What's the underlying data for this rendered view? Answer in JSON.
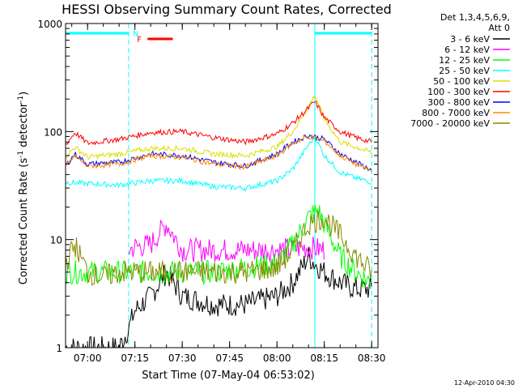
{
  "chart_data": {
    "type": "line",
    "title": "HESSI Observing Summary Count Rates, Corrected",
    "xlabel": "Start Time (07-May-04 06:53:02)",
    "ylabel": "Corrected Count Rate (s^-1 detector^-1)",
    "ylabel_parts": {
      "a": "Corrected Count Rate (s",
      "b": "-1",
      "c": " detector",
      "d": "-1",
      "e": ")"
    },
    "yscale": "log",
    "ylim": [
      1,
      1000
    ],
    "xlim": [
      "06:53:02",
      "08:32:00"
    ],
    "x_ticks": [
      "07:00",
      "07:15",
      "07:30",
      "07:45",
      "08:00",
      "08:15",
      "08:30"
    ],
    "y_ticks": [
      "1",
      "10",
      "100",
      "1000"
    ],
    "legend_header": [
      "Det 1,3,4,5,6,9,",
      "Att 0"
    ],
    "footer_date": "12-Apr-2010 04:30",
    "flags": [
      {
        "label": "N",
        "color": "#00ffff",
        "spans": [
          [
            "06:53:02",
            "07:13:00"
          ],
          [
            "08:12:00",
            "08:30:00"
          ]
        ]
      },
      {
        "label": "F",
        "color": "#ff0000",
        "spans": [
          [
            "07:19:00",
            "07:27:00"
          ]
        ]
      }
    ],
    "vertical_markers": [
      {
        "time": "07:13:00",
        "style": "dashed",
        "color": "#00ffff"
      },
      {
        "time": "08:12:00",
        "style": "solid",
        "color": "#00ffff"
      },
      {
        "time": "08:30:00",
        "style": "dashed",
        "color": "#00ffff"
      }
    ],
    "series": [
      {
        "name": "3 - 6 keV",
        "color": "#000000",
        "x": [
          "06:53",
          "07:00",
          "07:10",
          "07:13",
          "07:15",
          "07:20",
          "07:25",
          "07:30",
          "07:40",
          "07:50",
          "08:00",
          "08:05",
          "08:10",
          "08:12",
          "08:15",
          "08:20",
          "08:25",
          "08:30"
        ],
        "y": [
          1,
          1,
          1,
          1.5,
          2.2,
          3,
          5,
          3,
          2.5,
          2.5,
          3,
          4,
          7,
          6,
          5,
          4,
          3.5,
          3.5
        ]
      },
      {
        "name": "6 - 12 keV",
        "color": "#ff00ff",
        "x": [
          "07:13",
          "07:15",
          "07:20",
          "07:25",
          "07:30",
          "07:40",
          "07:50",
          "08:00",
          "08:10",
          "08:15"
        ],
        "y": [
          8,
          8.5,
          9,
          14,
          8,
          8,
          8,
          8,
          8.5,
          8
        ]
      },
      {
        "name": "12 - 25 keV",
        "color": "#00ff00",
        "x": [
          "06:53",
          "07:00",
          "07:10",
          "07:20",
          "07:30",
          "07:40",
          "07:50",
          "08:00",
          "08:05",
          "08:10",
          "08:13",
          "08:15",
          "08:20",
          "08:25",
          "08:30"
        ],
        "y": [
          5,
          5,
          5,
          5,
          5,
          5,
          5.5,
          6,
          9,
          16,
          19,
          14,
          7,
          5,
          4
        ]
      },
      {
        "name": "25 - 50 keV",
        "color": "#00ffff",
        "x": [
          "06:53",
          "07:00",
          "07:10",
          "07:20",
          "07:30",
          "07:40",
          "07:50",
          "08:00",
          "08:05",
          "08:10",
          "08:12",
          "08:15",
          "08:20",
          "08:25",
          "08:30"
        ],
        "y": [
          34,
          33,
          32,
          35,
          35,
          31,
          30,
          35,
          45,
          75,
          90,
          60,
          42,
          37,
          34
        ]
      },
      {
        "name": "50 - 100 keV",
        "color": "#dddd00",
        "x": [
          "06:53",
          "06:56",
          "07:00",
          "07:10",
          "07:20",
          "07:30",
          "07:40",
          "07:50",
          "08:00",
          "08:05",
          "08:10",
          "08:12",
          "08:15",
          "08:20",
          "08:25",
          "08:30"
        ],
        "y": [
          58,
          72,
          58,
          62,
          70,
          70,
          62,
          60,
          72,
          100,
          170,
          220,
          130,
          80,
          72,
          64
        ]
      },
      {
        "name": "100 - 300 keV",
        "color": "#ff0000",
        "x": [
          "06:53",
          "06:56",
          "07:00",
          "07:10",
          "07:20",
          "07:30",
          "07:40",
          "07:50",
          "08:00",
          "08:05",
          "08:10",
          "08:12",
          "08:15",
          "08:20",
          "08:25",
          "08:30"
        ],
        "y": [
          75,
          98,
          78,
          85,
          98,
          100,
          88,
          80,
          95,
          120,
          165,
          190,
          135,
          100,
          88,
          80
        ]
      },
      {
        "name": "300 - 800 keV",
        "color": "#0000ff",
        "x": [
          "06:53",
          "06:56",
          "07:00",
          "07:10",
          "07:20",
          "07:30",
          "07:40",
          "07:50",
          "08:00",
          "08:05",
          "08:10",
          "08:15",
          "08:20",
          "08:25",
          "08:30"
        ],
        "y": [
          48,
          62,
          50,
          52,
          62,
          60,
          52,
          48,
          62,
          80,
          92,
          85,
          62,
          52,
          44
        ]
      },
      {
        "name": "800 - 7000 keV",
        "color": "#ff8800",
        "x": [
          "06:53",
          "06:56",
          "07:00",
          "07:10",
          "07:20",
          "07:30",
          "07:40",
          "07:50",
          "08:00",
          "08:05",
          "08:10",
          "08:15",
          "08:20",
          "08:25",
          "08:30"
        ],
        "y": [
          47,
          60,
          48,
          50,
          60,
          58,
          50,
          47,
          60,
          78,
          90,
          82,
          60,
          50,
          43
        ]
      },
      {
        "name": "7000 - 20000 keV",
        "color": "#888800",
        "x": [
          "06:53",
          "06:56",
          "07:00",
          "07:05",
          "07:10",
          "07:20",
          "07:30",
          "07:40",
          "07:50",
          "08:00",
          "08:05",
          "08:10",
          "08:15",
          "08:20",
          "08:25",
          "08:30"
        ],
        "y": [
          6,
          9,
          5,
          4.5,
          5,
          5,
          5,
          5,
          5,
          5.5,
          8,
          14,
          16,
          11,
          7,
          5
        ]
      }
    ]
  }
}
